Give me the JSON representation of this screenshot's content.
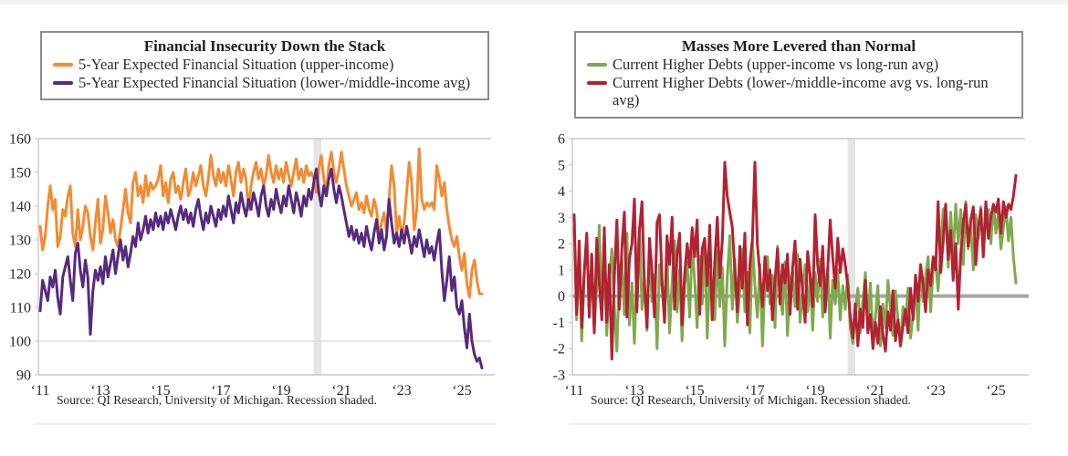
{
  "page": {
    "source_note": "Source: QI Research, University of Michigan. Recession shaded."
  },
  "chart_data": [
    {
      "id": "financial-insecurity",
      "type": "line",
      "title": "Financial Insecurity Down the Stack",
      "source_note": "Source: QI Research, University of Michigan. Recession shaded.",
      "x_start_year": 2011,
      "points_per_year": 12,
      "x_tick_years": [
        2011,
        2013,
        2015,
        2017,
        2019,
        2021,
        2023,
        2025
      ],
      "x_tick_labels": [
        "‘11",
        "‘13",
        "‘15",
        "‘17",
        "‘19",
        "‘21",
        "‘23",
        "‘25"
      ],
      "ylim": [
        90,
        160
      ],
      "y_ticks": [
        90,
        100,
        110,
        120,
        130,
        140,
        150,
        160
      ],
      "gridlines_at": [
        100
      ],
      "zero_line": false,
      "recession_band_years": [
        2020.08,
        2020.33
      ],
      "recession_note": "Recession shaded",
      "legend_position": "top-left-inset",
      "series": [
        {
          "name": "5-Year Expected Financial Situation (upper-income)",
          "color": "#F28B33",
          "values": [
            134,
            127,
            131,
            140,
            146,
            139,
            142,
            128,
            131,
            139,
            137,
            143,
            146,
            132,
            128,
            139,
            130,
            134,
            140,
            138,
            131,
            127,
            135,
            142,
            129,
            133,
            143,
            138,
            132,
            136,
            130,
            128,
            133,
            139,
            145,
            138,
            135,
            147,
            150,
            143,
            146,
            141,
            149,
            143,
            147,
            145,
            146,
            148,
            152,
            143,
            147,
            141,
            148,
            150,
            144,
            146,
            142,
            147,
            151,
            143,
            145,
            150,
            146,
            149,
            152,
            146,
            143,
            148,
            155,
            149,
            146,
            151,
            147,
            150,
            146,
            152,
            148,
            143,
            150,
            153,
            147,
            151,
            148,
            139,
            146,
            150,
            153,
            148,
            151,
            146,
            149,
            155,
            150,
            147,
            152,
            148,
            151,
            147,
            153,
            149,
            146,
            150,
            154,
            148,
            151,
            147,
            152,
            149,
            150,
            148,
            144,
            151,
            155,
            148,
            144,
            152,
            156,
            150,
            147,
            151,
            156,
            151,
            146,
            143,
            140,
            142,
            144,
            139,
            141,
            138,
            143,
            139,
            137,
            142,
            139,
            131,
            135,
            138,
            132,
            142,
            152,
            146,
            132,
            137,
            131,
            135,
            144,
            153,
            147,
            133,
            139,
            157,
            142,
            139,
            141,
            140,
            141,
            139,
            152,
            148,
            143,
            147,
            139,
            134,
            130,
            128,
            131,
            125,
            121,
            126,
            117,
            113,
            121,
            124,
            118,
            114,
            114
          ]
        },
        {
          "name": "5-Year Expected Financial Situation (lower-/middle-income avg)",
          "color": "#562A7F",
          "values": [
            109,
            118,
            115,
            112,
            119,
            116,
            121,
            113,
            108,
            119,
            122,
            125,
            118,
            112,
            126,
            129,
            121,
            116,
            124,
            119,
            102,
            115,
            121,
            118,
            122,
            117,
            125,
            119,
            123,
            127,
            120,
            125,
            130,
            124,
            128,
            122,
            126,
            131,
            128,
            135,
            130,
            133,
            137,
            132,
            136,
            133,
            138,
            134,
            137,
            133,
            138,
            135,
            139,
            136,
            133,
            137,
            140,
            136,
            139,
            135,
            138,
            134,
            139,
            142,
            137,
            133,
            138,
            135,
            140,
            137,
            134,
            139,
            136,
            140,
            137,
            143,
            139,
            135,
            141,
            138,
            144,
            140,
            137,
            142,
            139,
            144,
            141,
            137,
            143,
            146,
            140,
            137,
            142,
            139,
            145,
            141,
            138,
            143,
            140,
            146,
            142,
            138,
            144,
            141,
            137,
            143,
            140,
            145,
            142,
            147,
            151,
            144,
            140,
            146,
            143,
            148,
            151,
            145,
            141,
            146,
            143,
            139,
            135,
            131,
            134,
            130,
            133,
            129,
            132,
            128,
            134,
            130,
            127,
            132,
            136,
            129,
            133,
            127,
            131,
            142,
            135,
            129,
            132,
            128,
            133,
            129,
            134,
            130,
            126,
            131,
            128,
            133,
            129,
            125,
            130,
            126,
            128,
            124,
            129,
            133,
            121,
            112,
            118,
            125,
            115,
            119,
            110,
            108,
            112,
            104,
            98,
            108,
            100,
            96,
            94,
            95,
            92
          ]
        }
      ]
    },
    {
      "id": "masses-more-levered",
      "type": "line",
      "title": "Masses More Levered than Normal",
      "source_note": "Source: QI Research, University of Michigan. Recession shaded.",
      "x_start_year": 2011,
      "points_per_year": 12,
      "x_tick_years": [
        2011,
        2013,
        2015,
        2017,
        2019,
        2021,
        2023,
        2025
      ],
      "x_tick_labels": [
        "‘11",
        "‘13",
        "‘15",
        "‘17",
        "‘19",
        "‘21",
        "‘23",
        "‘25"
      ],
      "ylim": [
        -3,
        6
      ],
      "y_ticks": [
        -3,
        -2,
        -1,
        0,
        1,
        2,
        3,
        4,
        5,
        6
      ],
      "gridlines_at": [],
      "zero_line": true,
      "recession_band_years": [
        2020.08,
        2020.33
      ],
      "recession_note": "Recession shaded",
      "legend_position": "top-left-inset",
      "series": [
        {
          "name": "Current Higher Debts (upper-income vs long-run avg)",
          "color": "#7FA94D",
          "values": [
            2.6,
            -0.9,
            1.5,
            -1.7,
            0.8,
            2.2,
            -0.6,
            1.1,
            -1.2,
            0.4,
            2.7,
            -0.8,
            1.3,
            -1.5,
            0.6,
            1.8,
            -0.4,
            -2.1,
            0.9,
            1.4,
            -0.7,
            2.4,
            -1.1,
            0.5,
            -1.8,
            1.0,
            2.6,
            -0.5,
            0.7,
            -1.3,
            1.9,
            -0.2,
            0.8,
            -2.0,
            1.2,
            0.3,
            -0.9,
            1.6,
            -1.4,
            0.5,
            2.1,
            -0.6,
            1.0,
            -1.7,
            0.4,
            1.3,
            -0.8,
            2.0,
            0.6,
            -1.2,
            1.5,
            -0.3,
            2.2,
            -1.6,
            0.9,
            0.2,
            -0.9,
            1.7,
            -0.4,
            1.1,
            -1.9,
            0.7,
            2.3,
            -0.5,
            1.4,
            -1.0,
            0.3,
            1.8,
            -0.6,
            0.9,
            -1.4,
            2.1,
            0.4,
            -0.8,
            1.2,
            -1.9,
            0.6,
            1.5,
            -0.3,
            0.8,
            -1.2,
            1.9,
            0.1,
            -0.7,
            1.3,
            -1.5,
            0.5,
            1.0,
            -0.4,
            1.6,
            -1.0,
            0.2,
            1.2,
            -0.6,
            0.7,
            -1.3,
            0.9,
            -0.2,
            1.4,
            -0.8,
            0.3,
            1.1,
            -1.6,
            0.6,
            -0.3,
            1.0,
            -0.9,
            0.4,
            -0.5,
            0.8,
            -1.2,
            -1.8,
            -0.6,
            0.3,
            -1.4,
            -0.2,
            0.9,
            -1.0,
            0.5,
            -1.6,
            -0.8,
            0.4,
            -1.9,
            -0.3,
            -1.2,
            0.6,
            -0.5,
            -1.5,
            0.2,
            -0.9,
            -1.8,
            -0.4,
            -1.1,
            0.3,
            -1.6,
            -0.7,
            0.5,
            -1.3,
            1.2,
            -0.2,
            0.8,
            1.5,
            -0.6,
            1.0,
            1.3,
            0.2,
            1.8,
            3.3,
            3.4,
            1.1,
            3.2,
            1.5,
            3.5,
            2.0,
            3.3,
            1.2,
            3.6,
            1.8,
            2.7,
            1.0,
            3.1,
            2.2,
            3.4,
            1.6,
            2.9,
            3.3,
            2.0,
            3.5,
            2.4,
            3.2,
            1.8,
            2.6,
            3.4,
            2.1,
            3.0,
            1.5,
            0.5
          ]
        },
        {
          "name": "Current Higher Debts (lower-/middle-income avg vs. long-run avg)",
          "color": "#B22232",
          "values": [
            3.1,
            -0.7,
            2.1,
            -1.2,
            0.9,
            2.4,
            -0.8,
            1.6,
            -1.4,
            2.2,
            0.5,
            -0.9,
            2.6,
            -1.0,
            1.2,
            -2.4,
            0.7,
            2.9,
            -0.5,
            1.8,
            3.2,
            -0.8,
            1.4,
            2.0,
            3.7,
            -0.6,
            2.5,
            3.6,
            0.4,
            -1.2,
            2.2,
            1.0,
            -0.8,
            2.8,
            3.1,
            0.6,
            -1.0,
            2.3,
            1.2,
            3.0,
            -0.5,
            1.6,
            2.4,
            -1.1,
            0.8,
            2.0,
            1.1,
            2.6,
            1.5,
            2.9,
            -0.7,
            1.8,
            2.2,
            0.4,
            2.7,
            -0.9,
            1.3,
            3.0,
            0.7,
            2.1,
            5.1,
            3.8,
            3.2,
            2.6,
            1.0,
            -0.6,
            1.9,
            0.3,
            2.4,
            -1.1,
            1.2,
            2.2,
            5.1,
            2.0,
            0.8,
            -0.4,
            1.5,
            0.2,
            1.0,
            -0.9,
            0.6,
            1.8,
            -0.3,
            1.2,
            0.5,
            1.6,
            -0.7,
            1.1,
            2.1,
            -0.5,
            1.4,
            0.2,
            -1.0,
            1.7,
            0.8,
            -0.4,
            3.1,
            1.2,
            0.4,
            1.9,
            -0.6,
            1.0,
            2.9,
            1.5,
            0.3,
            2.2,
            0.9,
            1.8,
            1.2,
            0.4,
            -0.8,
            -1.6,
            -0.3,
            -1.9,
            -0.5,
            -1.2,
            0.6,
            -1.4,
            -0.7,
            -2.0,
            -1.0,
            -1.8,
            -0.4,
            -1.5,
            -2.1,
            -0.6,
            -1.3,
            0.2,
            -1.7,
            -0.9,
            -1.9,
            -1.1,
            -0.5,
            -1.4,
            0.3,
            -0.9,
            0.8,
            -0.2,
            1.2,
            0.5,
            -0.6,
            1.0,
            0.4,
            1.5,
            1.0,
            3.6,
            0.9,
            2.1,
            3.5,
            1.4,
            2.5,
            0.6,
            2.0,
            -0.5,
            1.6,
            2.8,
            3.5,
            1.9,
            2.9,
            3.4,
            1.2,
            2.6,
            3.3,
            1.5,
            3.6,
            2.2,
            3.0,
            3.5,
            3.2,
            3.7,
            2.4,
            3.6,
            3.0,
            3.5,
            3.3,
            3.8,
            4.6
          ]
        }
      ]
    }
  ],
  "style_colors": {
    "recession_band": "#e4e4e4",
    "zero_line": "#a6a6a6",
    "axis_line": "#c9c9c9",
    "gridline": "#d8d8d8"
  }
}
